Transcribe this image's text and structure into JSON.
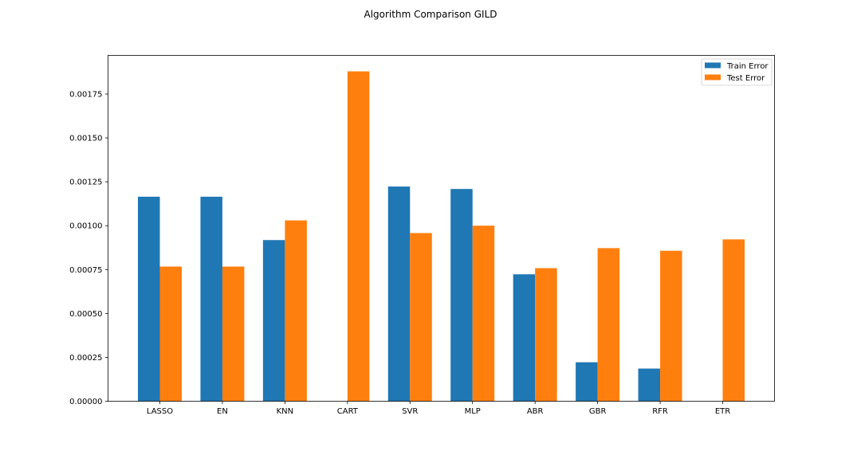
{
  "chart_data": {
    "type": "bar",
    "title": "Algorithm Comparison GILD",
    "xlabel": "",
    "ylabel": "",
    "categories": [
      "LASSO",
      "EN",
      "KNN",
      "CART",
      "SVR",
      "MLP",
      "ABR",
      "GBR",
      "RFR",
      "ETR"
    ],
    "series": [
      {
        "name": "Train Error",
        "color": "#1f77b4",
        "values": [
          0.001165,
          0.001165,
          0.000918,
          0.0,
          0.001223,
          0.001209,
          0.000723,
          0.000222,
          0.000186,
          0.0
        ]
      },
      {
        "name": "Test Error",
        "color": "#ff7f0e",
        "values": [
          0.000767,
          0.000767,
          0.00103,
          0.001879,
          0.000958,
          0.001,
          0.000758,
          0.000872,
          0.000857,
          0.000922
        ]
      }
    ],
    "ylim": [
      0,
      0.00197
    ],
    "yticks": [
      0,
      0.00025,
      0.0005,
      0.00075,
      0.001,
      0.00125,
      0.0015,
      0.00175
    ],
    "ytick_labels": [
      "0.00000",
      "0.00025",
      "0.00050",
      "0.00075",
      "0.00100",
      "0.00125",
      "0.00150",
      "0.00175"
    ],
    "grid": false,
    "legend_position": "top-right"
  }
}
